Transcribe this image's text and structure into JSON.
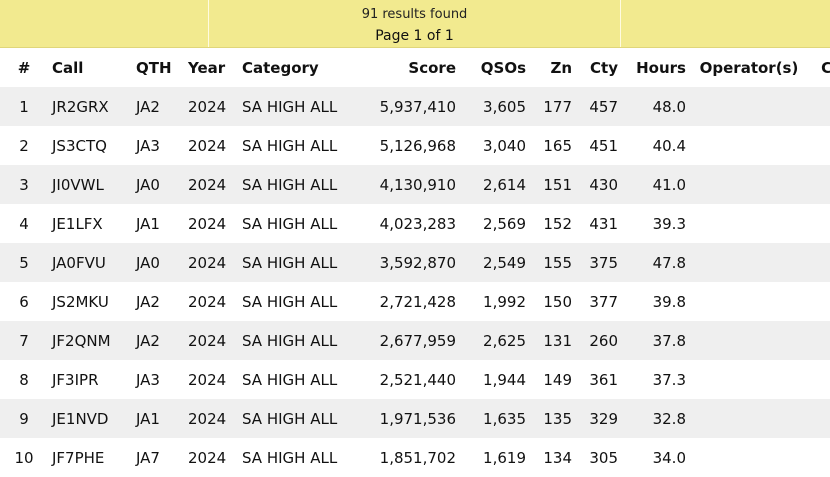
{
  "summary": {
    "results_found": "91 results found",
    "page_info": "Page 1 of 1"
  },
  "columns": {
    "num": "#",
    "call": "Call",
    "qth": "QTH",
    "year": "Year",
    "category": "Category",
    "score": "Score",
    "qsos": "QSOs",
    "zn": "Zn",
    "cty": "Cty",
    "hours": "Hours",
    "operators": "Operator(s)",
    "cert": "Cert"
  },
  "rows": [
    {
      "num": "1",
      "call": "JR2GRX",
      "qth": "JA2",
      "year": "2024",
      "category": "SA HIGH ALL",
      "score": "5,937,410",
      "qsos": "3,605",
      "zn": "177",
      "cty": "457",
      "hours": "48.0",
      "operators": ""
    },
    {
      "num": "2",
      "call": "JS3CTQ",
      "qth": "JA3",
      "year": "2024",
      "category": "SA HIGH ALL",
      "score": "5,126,968",
      "qsos": "3,040",
      "zn": "165",
      "cty": "451",
      "hours": "40.4",
      "operators": ""
    },
    {
      "num": "3",
      "call": "JI0VWL",
      "qth": "JA0",
      "year": "2024",
      "category": "SA HIGH ALL",
      "score": "4,130,910",
      "qsos": "2,614",
      "zn": "151",
      "cty": "430",
      "hours": "41.0",
      "operators": ""
    },
    {
      "num": "4",
      "call": "JE1LFX",
      "qth": "JA1",
      "year": "2024",
      "category": "SA HIGH ALL",
      "score": "4,023,283",
      "qsos": "2,569",
      "zn": "152",
      "cty": "431",
      "hours": "39.3",
      "operators": ""
    },
    {
      "num": "5",
      "call": "JA0FVU",
      "qth": "JA0",
      "year": "2024",
      "category": "SA HIGH ALL",
      "score": "3,592,870",
      "qsos": "2,549",
      "zn": "155",
      "cty": "375",
      "hours": "47.8",
      "operators": ""
    },
    {
      "num": "6",
      "call": "JS2MKU",
      "qth": "JA2",
      "year": "2024",
      "category": "SA HIGH ALL",
      "score": "2,721,428",
      "qsos": "1,992",
      "zn": "150",
      "cty": "377",
      "hours": "39.8",
      "operators": ""
    },
    {
      "num": "7",
      "call": "JF2QNM",
      "qth": "JA2",
      "year": "2024",
      "category": "SA HIGH ALL",
      "score": "2,677,959",
      "qsos": "2,625",
      "zn": "131",
      "cty": "260",
      "hours": "37.8",
      "operators": ""
    },
    {
      "num": "8",
      "call": "JF3IPR",
      "qth": "JA3",
      "year": "2024",
      "category": "SA HIGH ALL",
      "score": "2,521,440",
      "qsos": "1,944",
      "zn": "149",
      "cty": "361",
      "hours": "37.3",
      "operators": ""
    },
    {
      "num": "9",
      "call": "JE1NVD",
      "qth": "JA1",
      "year": "2024",
      "category": "SA HIGH ALL",
      "score": "1,971,536",
      "qsos": "1,635",
      "zn": "135",
      "cty": "329",
      "hours": "32.8",
      "operators": ""
    },
    {
      "num": "10",
      "call": "JF7PHE",
      "qth": "JA7",
      "year": "2024",
      "category": "SA HIGH ALL",
      "score": "1,851,702",
      "qsos": "1,619",
      "zn": "134",
      "cty": "305",
      "hours": "34.0",
      "operators": ""
    }
  ],
  "icons": {
    "cert": "certificate-ribbon-icon"
  },
  "colors": {
    "banner": "#f2ea8f",
    "row_alt": "#efefef",
    "cert_icon": "#e03a3a"
  }
}
